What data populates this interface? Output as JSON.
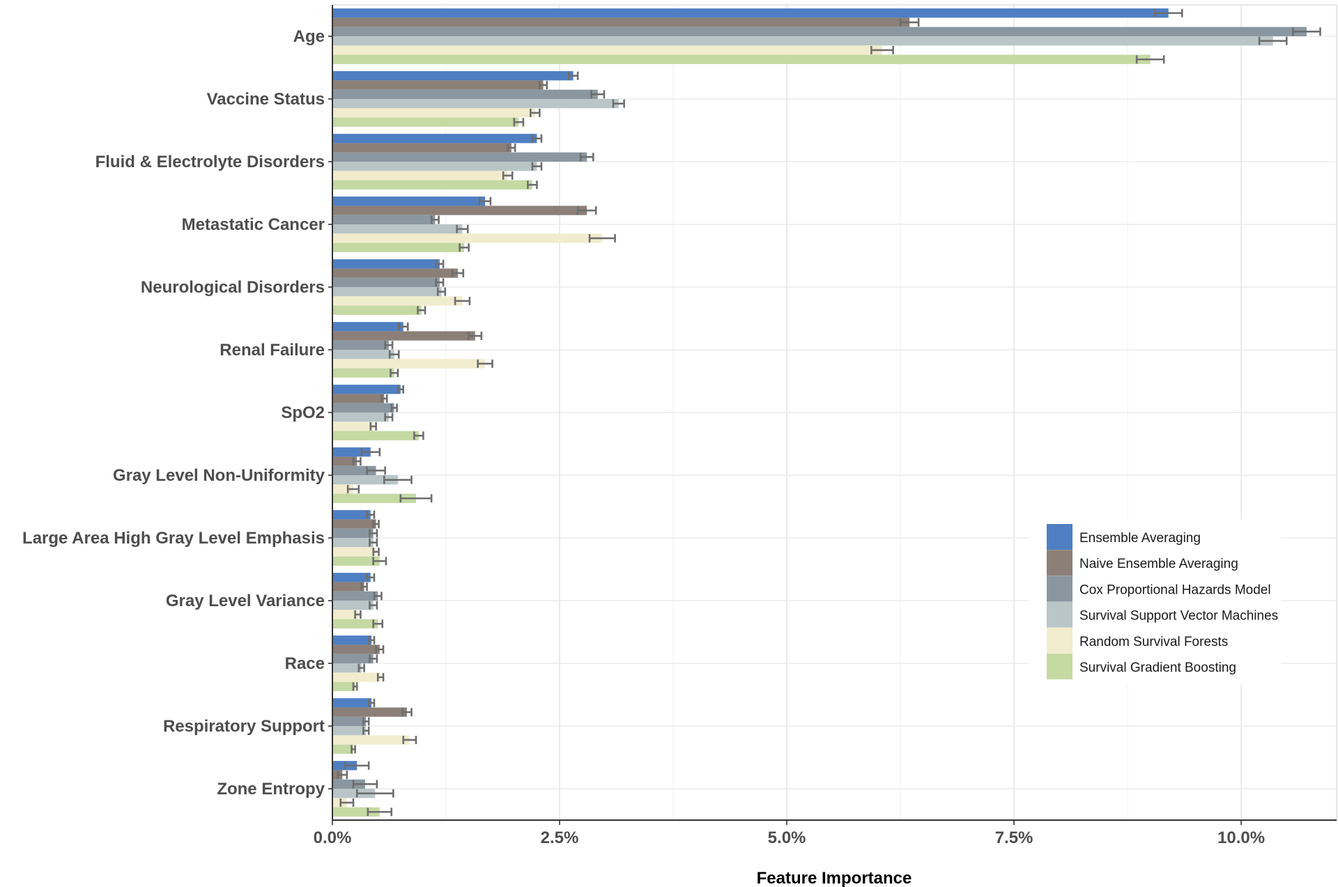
{
  "chart_data": {
    "type": "bar",
    "orientation": "horizontal",
    "xlabel": "Feature Importance",
    "ylabel": "",
    "xlim": [
      0,
      11.05
    ],
    "x_ticks": [
      0,
      2.5,
      5,
      7.5,
      10
    ],
    "x_tick_labels": [
      "0.0%",
      "2.5%",
      "5.0%",
      "7.5%",
      "10.0%"
    ],
    "grid": true,
    "legend_position": "bottom-right",
    "categories": [
      "Age",
      "Vaccine Status",
      "Fluid & Electrolyte Disorders",
      "Metastatic Cancer",
      "Neurological Disorders",
      "Renal Failure",
      "SpO2",
      "Gray Level Non-Uniformity",
      "Large Area High Gray Level Emphasis",
      "Gray Level Variance",
      "Race",
      "Respiratory Support",
      "Zone Entropy"
    ],
    "series": [
      {
        "name": "Ensemble Averaging",
        "color": "#4f7fc3",
        "values": [
          9.2,
          2.65,
          2.25,
          1.68,
          1.18,
          0.78,
          0.75,
          0.42,
          0.42,
          0.42,
          0.43,
          0.43,
          0.27
        ],
        "errors": [
          0.15,
          0.05,
          0.05,
          0.06,
          0.04,
          0.05,
          0.03,
          0.1,
          0.04,
          0.04,
          0.03,
          0.03,
          0.13
        ]
      },
      {
        "name": "Naive Ensemble Averaging",
        "color": "#8b7f77",
        "values": [
          6.35,
          2.32,
          1.97,
          2.8,
          1.38,
          1.57,
          0.57,
          0.27,
          0.48,
          0.35,
          0.52,
          0.82,
          0.11
        ],
        "errors": [
          0.1,
          0.04,
          0.04,
          0.1,
          0.06,
          0.07,
          0.03,
          0.04,
          0.03,
          0.03,
          0.04,
          0.05,
          0.05
        ]
      },
      {
        "name": "Cox Proportional Hazards Model",
        "color": "#8a97a1",
        "values": [
          10.72,
          2.92,
          2.8,
          1.13,
          1.18,
          0.62,
          0.68,
          0.48,
          0.45,
          0.5,
          0.45,
          0.37,
          0.36
        ],
        "errors": [
          0.15,
          0.07,
          0.07,
          0.04,
          0.04,
          0.04,
          0.03,
          0.1,
          0.04,
          0.04,
          0.04,
          0.03,
          0.13
        ]
      },
      {
        "name": "Survival Support Vector Machines",
        "color": "#b9c5c6",
        "values": [
          10.35,
          3.15,
          2.25,
          1.43,
          1.2,
          0.68,
          0.62,
          0.72,
          0.45,
          0.45,
          0.32,
          0.37,
          0.47
        ],
        "errors": [
          0.15,
          0.06,
          0.05,
          0.06,
          0.04,
          0.05,
          0.04,
          0.15,
          0.04,
          0.04,
          0.03,
          0.03,
          0.2
        ]
      },
      {
        "name": "Random Survival Forests",
        "color": "#f1eccd",
        "values": [
          6.05,
          2.23,
          1.93,
          2.97,
          1.43,
          1.68,
          0.45,
          0.23,
          0.48,
          0.28,
          0.53,
          0.85,
          0.16
        ],
        "errors": [
          0.12,
          0.05,
          0.05,
          0.14,
          0.08,
          0.08,
          0.03,
          0.06,
          0.03,
          0.03,
          0.03,
          0.07,
          0.07
        ]
      },
      {
        "name": "Survival Gradient Boosting",
        "color": "#c5d9a3",
        "values": [
          9.0,
          2.05,
          2.2,
          1.45,
          0.98,
          0.68,
          0.95,
          0.92,
          0.52,
          0.5,
          0.25,
          0.23,
          0.52
        ],
        "errors": [
          0.15,
          0.05,
          0.05,
          0.05,
          0.04,
          0.04,
          0.05,
          0.17,
          0.07,
          0.05,
          0.02,
          0.02,
          0.13
        ]
      }
    ]
  }
}
